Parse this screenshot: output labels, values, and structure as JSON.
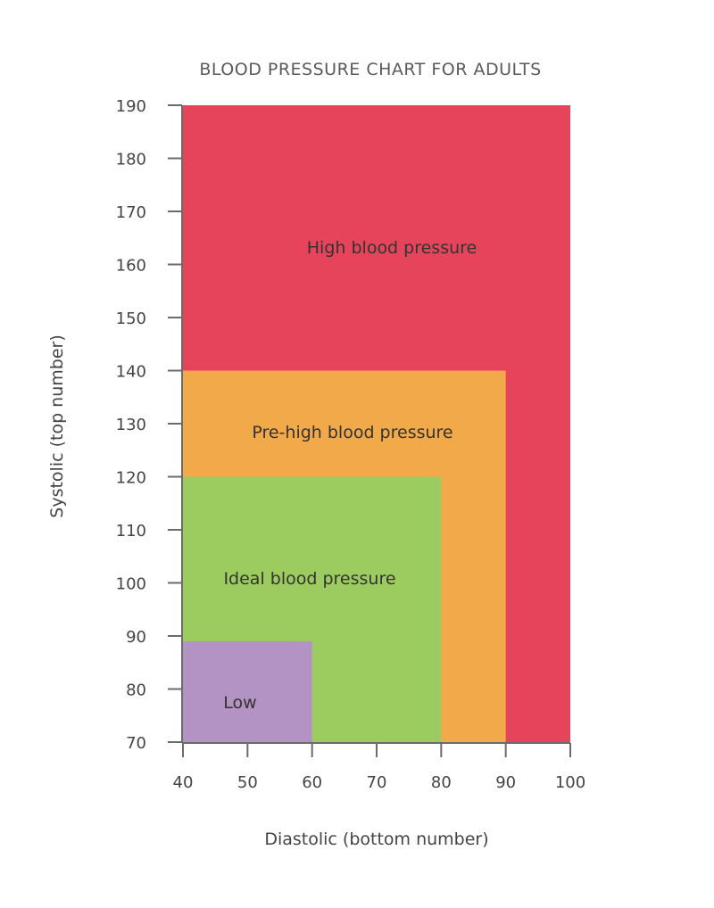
{
  "chart_data": {
    "type": "area",
    "title": "BLOOD PRESSURE CHART FOR ADULTS",
    "xlabel": "Diastolic (bottom number)",
    "ylabel": "Systolic (top number)",
    "xlim": [
      40,
      100
    ],
    "ylim": [
      70,
      190
    ],
    "x_ticks": [
      40,
      50,
      60,
      70,
      80,
      90,
      100
    ],
    "y_ticks": [
      70,
      80,
      90,
      100,
      110,
      120,
      130,
      140,
      150,
      160,
      170,
      180,
      190
    ],
    "regions": [
      {
        "name": "High blood pressure",
        "x_max": 100,
        "y_max": 190,
        "color": "#e5445b"
      },
      {
        "name": "Pre-high blood pressure",
        "x_max": 90,
        "y_max": 140,
        "color": "#f1a94a"
      },
      {
        "name": "Ideal blood pressure",
        "x_max": 80,
        "y_max": 120,
        "color": "#9ccc5f"
      },
      {
        "name": "Low",
        "x_max": 60,
        "y_max": 89,
        "color": "#b293c4"
      }
    ]
  }
}
